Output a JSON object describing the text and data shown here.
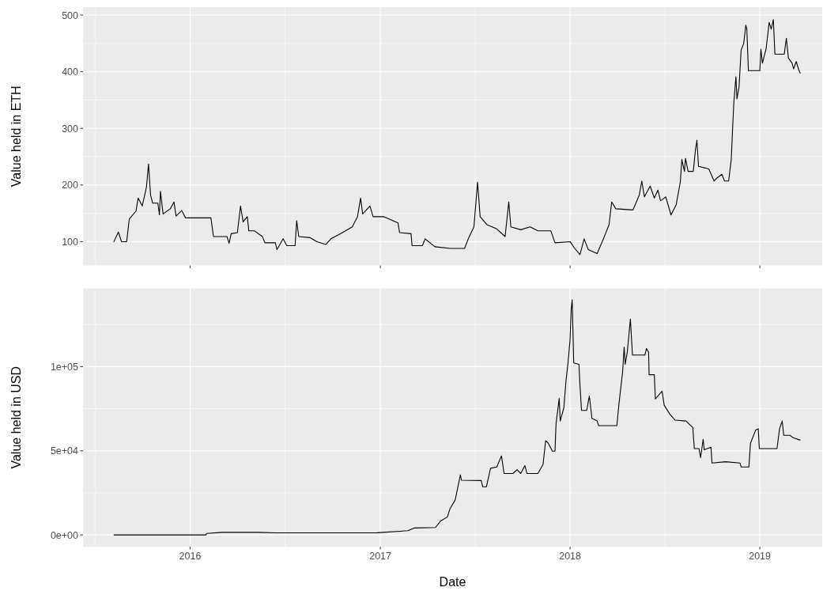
{
  "chart_data": [
    {
      "type": "line",
      "ylabel": "Value held in ETH",
      "xlim": [
        "2015-06-09",
        "2019-05-01"
      ],
      "xticks": [
        {
          "value": "2016-01-01",
          "label": null
        },
        {
          "value": "2017-01-01",
          "label": null
        },
        {
          "value": "2018-01-01",
          "label": null
        },
        {
          "value": "2019-01-01",
          "label": null
        }
      ],
      "ylim": [
        58,
        514
      ],
      "yticks": [
        100,
        200,
        300,
        400,
        500
      ],
      "grid": true,
      "tick_labels": "y",
      "series": [
        {
          "color": "#000000",
          "x": [
            "2015-08-07",
            "2015-08-16",
            "2015-08-22",
            "2015-09-01",
            "2015-09-06",
            "2015-09-19",
            "2015-09-23",
            "2015-10-01",
            "2015-10-09",
            "2015-10-13",
            "2015-10-17",
            "2015-10-21",
            "2015-10-31",
            "2015-11-03",
            "2015-11-05",
            "2015-11-10",
            "2015-11-24",
            "2015-12-01",
            "2015-12-05",
            "2015-12-16",
            "2015-12-23",
            "2016-02-10",
            "2016-02-15",
            "2016-03-12",
            "2016-03-16",
            "2016-03-20",
            "2016-04-01",
            "2016-04-07",
            "2016-04-12",
            "2016-04-20",
            "2016-04-23",
            "2016-05-04",
            "2016-05-19",
            "2016-05-24",
            "2016-06-13",
            "2016-06-16",
            "2016-06-28",
            "2016-07-05",
            "2016-07-21",
            "2016-07-24",
            "2016-07-28",
            "2016-08-19",
            "2016-09-01",
            "2016-09-18",
            "2016-09-28",
            "2016-10-16",
            "2016-11-08",
            "2016-11-18",
            "2016-11-24",
            "2016-11-28",
            "2016-12-12",
            "2016-12-18",
            "2017-01-08",
            "2017-02-04",
            "2017-02-07",
            "2017-03-01",
            "2017-03-03",
            "2017-03-23",
            "2017-03-28",
            "2017-04-16",
            "2017-05-16",
            "2017-06-12",
            "2017-06-20",
            "2017-06-30",
            "2017-07-07",
            "2017-07-12",
            "2017-07-25",
            "2017-08-12",
            "2017-08-29",
            "2017-09-05",
            "2017-09-09",
            "2017-09-28",
            "2017-10-16",
            "2017-10-31",
            "2017-11-25",
            "2017-12-03",
            "2018-01-01",
            "2018-01-10",
            "2018-01-20",
            "2018-01-28",
            "2018-02-05",
            "2018-02-22",
            "2018-03-07",
            "2018-03-17",
            "2018-03-22",
            "2018-03-30",
            "2018-05-02",
            "2018-05-14",
            "2018-05-19",
            "2018-05-24",
            "2018-06-04",
            "2018-06-12",
            "2018-06-19",
            "2018-06-24",
            "2018-07-04",
            "2018-07-12",
            "2018-07-14",
            "2018-07-24",
            "2018-08-01",
            "2018-08-04",
            "2018-08-09",
            "2018-08-11",
            "2018-08-16",
            "2018-08-26",
            "2018-08-30",
            "2018-09-02",
            "2018-09-05",
            "2018-09-18",
            "2018-09-25",
            "2018-10-05",
            "2018-10-10",
            "2018-10-20",
            "2018-10-25",
            "2018-11-02",
            "2018-11-07",
            "2018-11-10",
            "2018-11-12",
            "2018-11-16",
            "2018-11-18",
            "2018-11-22",
            "2018-11-26",
            "2018-12-01",
            "2018-12-05",
            "2018-12-07",
            "2018-12-10",
            "2019-01-01",
            "2019-01-03",
            "2019-01-06",
            "2019-01-13",
            "2019-01-19",
            "2019-01-23",
            "2019-01-27",
            "2019-01-30",
            "2019-02-17",
            "2019-02-21",
            "2019-02-25",
            "2019-03-04",
            "2019-03-07",
            "2019-03-12",
            "2019-03-17",
            "2019-03-20"
          ],
          "values": [
            99,
            117,
            100,
            100,
            140,
            154,
            177,
            163,
            196,
            237,
            182,
            168,
            168,
            147,
            189,
            149,
            158,
            170,
            145,
            155,
            142,
            142,
            109,
            109,
            97,
            114,
            116,
            163,
            135,
            144,
            119,
            119,
            109,
            98,
            98,
            86,
            105,
            93,
            93,
            137,
            109,
            107,
            100,
            95,
            105,
            114,
            126,
            144,
            177,
            149,
            163,
            144,
            144,
            133,
            116,
            114,
            93,
            93,
            105,
            91,
            88,
            88,
            107,
            126,
            205,
            144,
            130,
            123,
            109,
            170,
            126,
            121,
            126,
            119,
            119,
            98,
            100,
            88,
            77,
            105,
            86,
            79,
            107,
            130,
            170,
            158,
            156,
            182,
            207,
            179,
            198,
            177,
            191,
            172,
            179,
            154,
            147,
            165,
            205,
            245,
            224,
            247,
            224,
            224,
            261,
            279,
            233,
            230,
            228,
            207,
            212,
            219,
            207,
            207,
            245,
            307,
            345,
            391,
            352,
            373,
            438,
            450,
            482,
            475,
            402,
            402,
            440,
            415,
            440,
            487,
            475,
            492,
            431,
            431,
            459,
            424,
            415,
            405,
            418,
            403,
            397
          ]
        }
      ]
    },
    {
      "type": "line",
      "xlabel": "Date",
      "ylabel": "Value held in USD",
      "xlim": [
        "2015-06-09",
        "2019-05-01"
      ],
      "xticks": [
        {
          "value": "2016-01-01",
          "label": "2016"
        },
        {
          "value": "2017-01-01",
          "label": "2017"
        },
        {
          "value": "2018-01-01",
          "label": "2018"
        },
        {
          "value": "2019-01-01",
          "label": "2019"
        }
      ],
      "ylim": [
        -7000,
        146500
      ],
      "yticks": [
        {
          "value": 0,
          "label": "0e+00"
        },
        {
          "value": 50000,
          "label": "5e+04"
        },
        {
          "value": 100000,
          "label": "1e+05"
        }
      ],
      "grid": true,
      "series": [
        {
          "color": "#000000",
          "x": [
            "2015-08-07",
            "2016-01-31",
            "2016-02-02",
            "2016-03-03",
            "2016-05-12",
            "2016-06-12",
            "2016-12-26",
            "2017-02-23",
            "2017-03-07",
            "2017-04-17",
            "2017-04-27",
            "2017-05-10",
            "2017-05-15",
            "2017-05-25",
            "2017-06-04",
            "2017-06-06",
            "2017-07-14",
            "2017-07-17",
            "2017-07-24",
            "2017-08-01",
            "2017-08-13",
            "2017-08-22",
            "2017-08-27",
            "2017-09-13",
            "2017-09-21",
            "2017-09-28",
            "2017-10-06",
            "2017-10-10",
            "2017-10-31",
            "2017-11-10",
            "2017-11-15",
            "2017-11-20",
            "2017-11-28",
            "2017-12-03",
            "2017-12-05",
            "2017-12-11",
            "2017-12-13",
            "2017-12-20",
            "2017-12-24",
            "2017-12-28",
            "2018-01-01",
            "2018-01-03",
            "2018-01-05",
            "2018-01-08",
            "2018-01-18",
            "2018-01-20",
            "2018-01-23",
            "2018-02-02",
            "2018-02-07",
            "2018-02-12",
            "2018-02-22",
            "2018-02-25",
            "2018-04-01",
            "2018-04-05",
            "2018-04-12",
            "2018-04-15",
            "2018-04-17",
            "2018-04-21",
            "2018-04-25",
            "2018-04-27",
            "2018-05-01",
            "2018-05-25",
            "2018-05-28",
            "2018-06-01",
            "2018-06-02",
            "2018-06-12",
            "2018-06-14",
            "2018-06-27",
            "2018-07-01",
            "2018-07-12",
            "2018-07-22",
            "2018-08-12",
            "2018-08-25",
            "2018-08-28",
            "2018-09-06",
            "2018-09-09",
            "2018-09-14",
            "2018-09-16",
            "2018-09-29",
            "2018-10-01",
            "2018-10-27",
            "2018-11-24",
            "2018-11-26",
            "2018-12-11",
            "2018-12-14",
            "2018-12-24",
            "2018-12-29",
            "2018-12-31",
            "2019-02-03",
            "2019-02-08",
            "2019-02-13",
            "2019-02-16",
            "2019-02-28",
            "2019-03-07",
            "2019-03-20"
          ],
          "values": [
            0,
            0,
            900,
            1500,
            1500,
            1200,
            1300,
            2500,
            4100,
            4400,
            8300,
            10700,
            15600,
            20800,
            35700,
            32500,
            32300,
            28600,
            28600,
            39600,
            40400,
            47000,
            36500,
            36500,
            38800,
            36500,
            41200,
            36500,
            36500,
            41900,
            56000,
            54500,
            49800,
            49800,
            66200,
            81100,
            67700,
            75600,
            91200,
            102200,
            116300,
            133500,
            139800,
            102200,
            101400,
            88900,
            74000,
            74000,
            82600,
            69300,
            67700,
            64900,
            64900,
            77900,
            96700,
            111600,
            101400,
            108500,
            121700,
            128300,
            106900,
            106900,
            110800,
            108500,
            95200,
            95200,
            80800,
            85400,
            77100,
            71700,
            68200,
            67700,
            63800,
            51300,
            51300,
            45900,
            56800,
            50600,
            52100,
            42700,
            43500,
            42700,
            40400,
            40400,
            54500,
            62300,
            63100,
            51300,
            51300,
            63100,
            67700,
            59200,
            59200,
            57600,
            56300
          ]
        }
      ]
    }
  ]
}
